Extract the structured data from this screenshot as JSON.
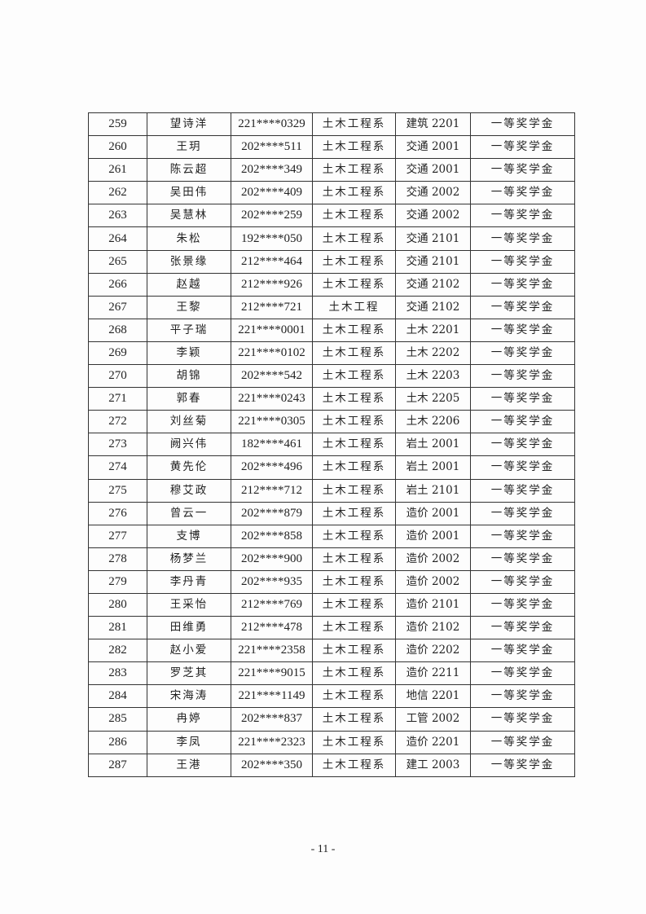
{
  "rows": [
    [
      "259",
      "望诗洋",
      "221****0329",
      "土木工程系",
      "建筑 2201",
      "一等奖学金"
    ],
    [
      "260",
      "王玥",
      "202****511",
      "土木工程系",
      "交通 2001",
      "一等奖学金"
    ],
    [
      "261",
      "陈云超",
      "202****349",
      "土木工程系",
      "交通 2001",
      "一等奖学金"
    ],
    [
      "262",
      "吴田伟",
      "202****409",
      "土木工程系",
      "交通 2002",
      "一等奖学金"
    ],
    [
      "263",
      "吴慧林",
      "202****259",
      "土木工程系",
      "交通 2002",
      "一等奖学金"
    ],
    [
      "264",
      "朱松",
      "192****050",
      "土木工程系",
      "交通 2101",
      "一等奖学金"
    ],
    [
      "265",
      "张景缘",
      "212****464",
      "土木工程系",
      "交通 2101",
      "一等奖学金"
    ],
    [
      "266",
      "赵越",
      "212****926",
      "土木工程系",
      "交通 2102",
      "一等奖学金"
    ],
    [
      "267",
      "王黎",
      "212****721",
      "土木工程",
      "交通 2102",
      "一等奖学金"
    ],
    [
      "268",
      "平子瑞",
      "221****0001",
      "土木工程系",
      "土木 2201",
      "一等奖学金"
    ],
    [
      "269",
      "李颖",
      "221****0102",
      "土木工程系",
      "土木 2202",
      "一等奖学金"
    ],
    [
      "270",
      "胡锦",
      "202****542",
      "土木工程系",
      "土木 2203",
      "一等奖学金"
    ],
    [
      "271",
      "郭春",
      "221****0243",
      "土木工程系",
      "土木 2205",
      "一等奖学金"
    ],
    [
      "272",
      "刘丝菊",
      "221****0305",
      "土木工程系",
      "土木 2206",
      "一等奖学金"
    ],
    [
      "273",
      "阙兴伟",
      "182****461",
      "土木工程系",
      "岩土 2001",
      "一等奖学金"
    ],
    [
      "274",
      "黄先伦",
      "202****496",
      "土木工程系",
      "岩土 2001",
      "一等奖学金"
    ],
    [
      "275",
      "穆艾政",
      "212****712",
      "土木工程系",
      "岩土 2101",
      "一等奖学金"
    ],
    [
      "276",
      "曾云一",
      "202****879",
      "土木工程系",
      "造价 2001",
      "一等奖学金"
    ],
    [
      "277",
      "支博",
      "202****858",
      "土木工程系",
      "造价 2001",
      "一等奖学金"
    ],
    [
      "278",
      "杨梦兰",
      "202****900",
      "土木工程系",
      "造价 2002",
      "一等奖学金"
    ],
    [
      "279",
      "李丹青",
      "202****935",
      "土木工程系",
      "造价 2002",
      "一等奖学金"
    ],
    [
      "280",
      "王采怡",
      "212****769",
      "土木工程系",
      "造价 2101",
      "一等奖学金"
    ],
    [
      "281",
      "田维勇",
      "212****478",
      "土木工程系",
      "造价 2102",
      "一等奖学金"
    ],
    [
      "282",
      "赵小爱",
      "221****2358",
      "土木工程系",
      "造价 2202",
      "一等奖学金"
    ],
    [
      "283",
      "罗芝其",
      "221****9015",
      "土木工程系",
      "造价 2211",
      "一等奖学金"
    ],
    [
      "284",
      "宋海涛",
      "221****1149",
      "土木工程系",
      "地信 2201",
      "一等奖学金"
    ],
    [
      "285",
      "冉婷",
      "202****837",
      "土木工程系",
      "工管 2002",
      "一等奖学金"
    ],
    [
      "286",
      "李凤",
      "221****2323",
      "土木工程系",
      "造价 2201",
      "一等奖学金"
    ],
    [
      "287",
      "王港",
      "202****350",
      "土木工程系",
      "建工 2003",
      "一等奖学金"
    ]
  ],
  "page_number": "- 11 -"
}
